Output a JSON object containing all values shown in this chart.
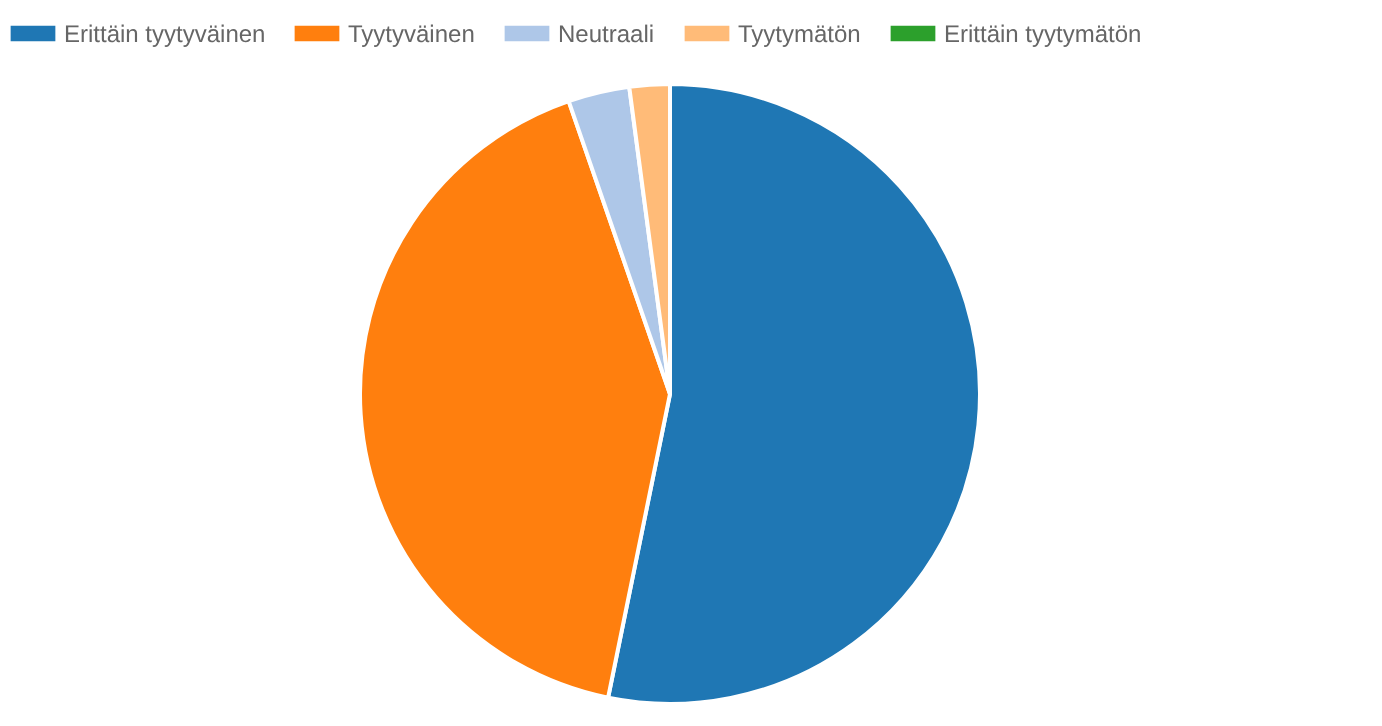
{
  "chart_data": {
    "type": "pie",
    "categories": [
      "Erittäin tyytyväinen",
      "Tyytyväinen",
      "Neutraali",
      "Tyytymätön",
      "Erittäin tyytymätön"
    ],
    "values": [
      53.2,
      41.5,
      3.2,
      2.1,
      0
    ],
    "colors": [
      "#1f77b4",
      "#ff7f0e",
      "#aec7e8",
      "#ffbb78",
      "#2ca02c"
    ],
    "legend": "top"
  }
}
